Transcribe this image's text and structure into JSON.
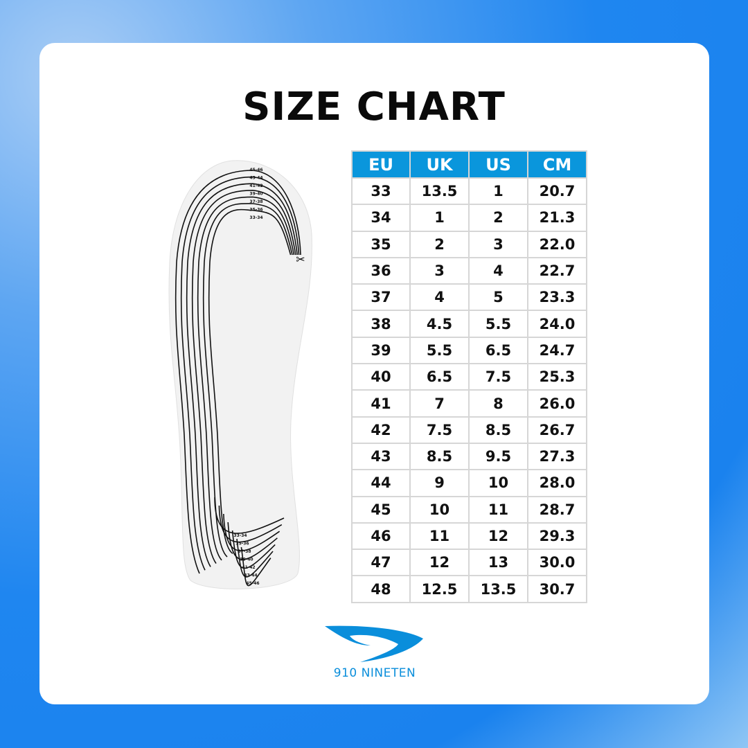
{
  "title": "SIZE CHART",
  "table": {
    "headers": [
      "EU",
      "UK",
      "US",
      "CM"
    ],
    "rows": [
      [
        "33",
        "13.5",
        "1",
        "20.7"
      ],
      [
        "34",
        "1",
        "2",
        "21.3"
      ],
      [
        "35",
        "2",
        "3",
        "22.0"
      ],
      [
        "36",
        "3",
        "4",
        "22.7"
      ],
      [
        "37",
        "4",
        "5",
        "23.3"
      ],
      [
        "38",
        "4.5",
        "5.5",
        "24.0"
      ],
      [
        "39",
        "5.5",
        "6.5",
        "24.7"
      ],
      [
        "40",
        "6.5",
        "7.5",
        "25.3"
      ],
      [
        "41",
        "7",
        "8",
        "26.0"
      ],
      [
        "42",
        "7.5",
        "8.5",
        "26.7"
      ],
      [
        "43",
        "8.5",
        "9.5",
        "27.3"
      ],
      [
        "44",
        "9",
        "10",
        "28.0"
      ],
      [
        "45",
        "10",
        "11",
        "28.7"
      ],
      [
        "46",
        "11",
        "12",
        "29.3"
      ],
      [
        "47",
        "12",
        "13",
        "30.0"
      ],
      [
        "48",
        "12.5",
        "13.5",
        "30.7"
      ]
    ]
  },
  "insole": {
    "trim_labels": [
      "45-46",
      "43-44",
      "41-42",
      "39-40",
      "37-38",
      "35-36",
      "33-34"
    ]
  },
  "brand": {
    "name": "910 NINETEN",
    "color": "#0a8edb"
  },
  "colors": {
    "header": "#0a96dc",
    "background": "#1f86f0"
  }
}
